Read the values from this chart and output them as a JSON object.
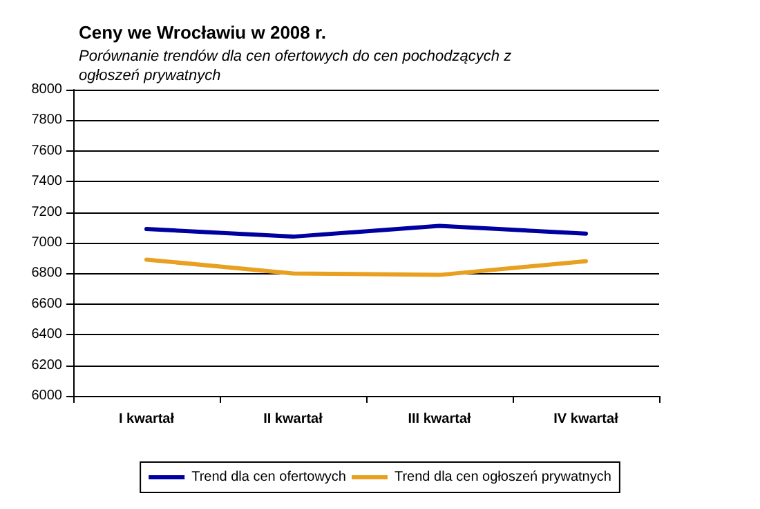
{
  "chart_data": {
    "type": "line",
    "title": "Ceny we Wrocławiu w 2008 r.",
    "subtitle": "Porównanie trendów dla cen ofertowych do cen pochodzących z\nogłoszeń prywatnych",
    "categories": [
      "I kwartał",
      "II kwartał",
      "III kwartał",
      "IV kwartał"
    ],
    "series": [
      {
        "name": "Trend dla cen ofertowych",
        "color": "#0000a0",
        "values": [
          7090,
          7040,
          7110,
          7060
        ]
      },
      {
        "name": "Trend dla cen ogłoszeń prywatnych",
        "color": "#e8a020",
        "values": [
          6890,
          6800,
          6790,
          6880
        ]
      }
    ],
    "ylim": [
      6000,
      8000
    ],
    "yticks": [
      6000,
      6200,
      6400,
      6600,
      6800,
      7000,
      7200,
      7400,
      7600,
      7800,
      8000
    ],
    "grid": "y",
    "legend": "bottom",
    "marker": "none",
    "line_style": "solid"
  }
}
